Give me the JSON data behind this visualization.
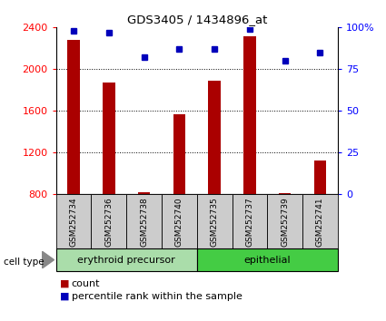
{
  "title": "GDS3405 / 1434896_at",
  "samples": [
    "GSM252734",
    "GSM252736",
    "GSM252738",
    "GSM252740",
    "GSM252735",
    "GSM252737",
    "GSM252739",
    "GSM252741"
  ],
  "counts": [
    2280,
    1870,
    820,
    1570,
    1890,
    2310,
    810,
    1120
  ],
  "percentile_ranks": [
    98,
    97,
    82,
    87,
    87,
    99,
    80,
    85
  ],
  "cell_type_labels": [
    "erythroid precursor",
    "epithelial"
  ],
  "ylim_left": [
    800,
    2400
  ],
  "ylim_right": [
    0,
    100
  ],
  "yticks_left": [
    800,
    1200,
    1600,
    2000,
    2400
  ],
  "yticks_right": [
    0,
    25,
    50,
    75,
    100
  ],
  "grid_lines": [
    1200,
    1600,
    2000
  ],
  "bar_color": "#aa0000",
  "dot_color": "#0000bb",
  "bar_width": 0.35,
  "sample_bg_color": "#cccccc",
  "cell_type_bg1": "#aaddaa",
  "cell_type_bg2": "#44cc44",
  "fig_width": 4.25,
  "fig_height": 3.54,
  "dpi": 100
}
